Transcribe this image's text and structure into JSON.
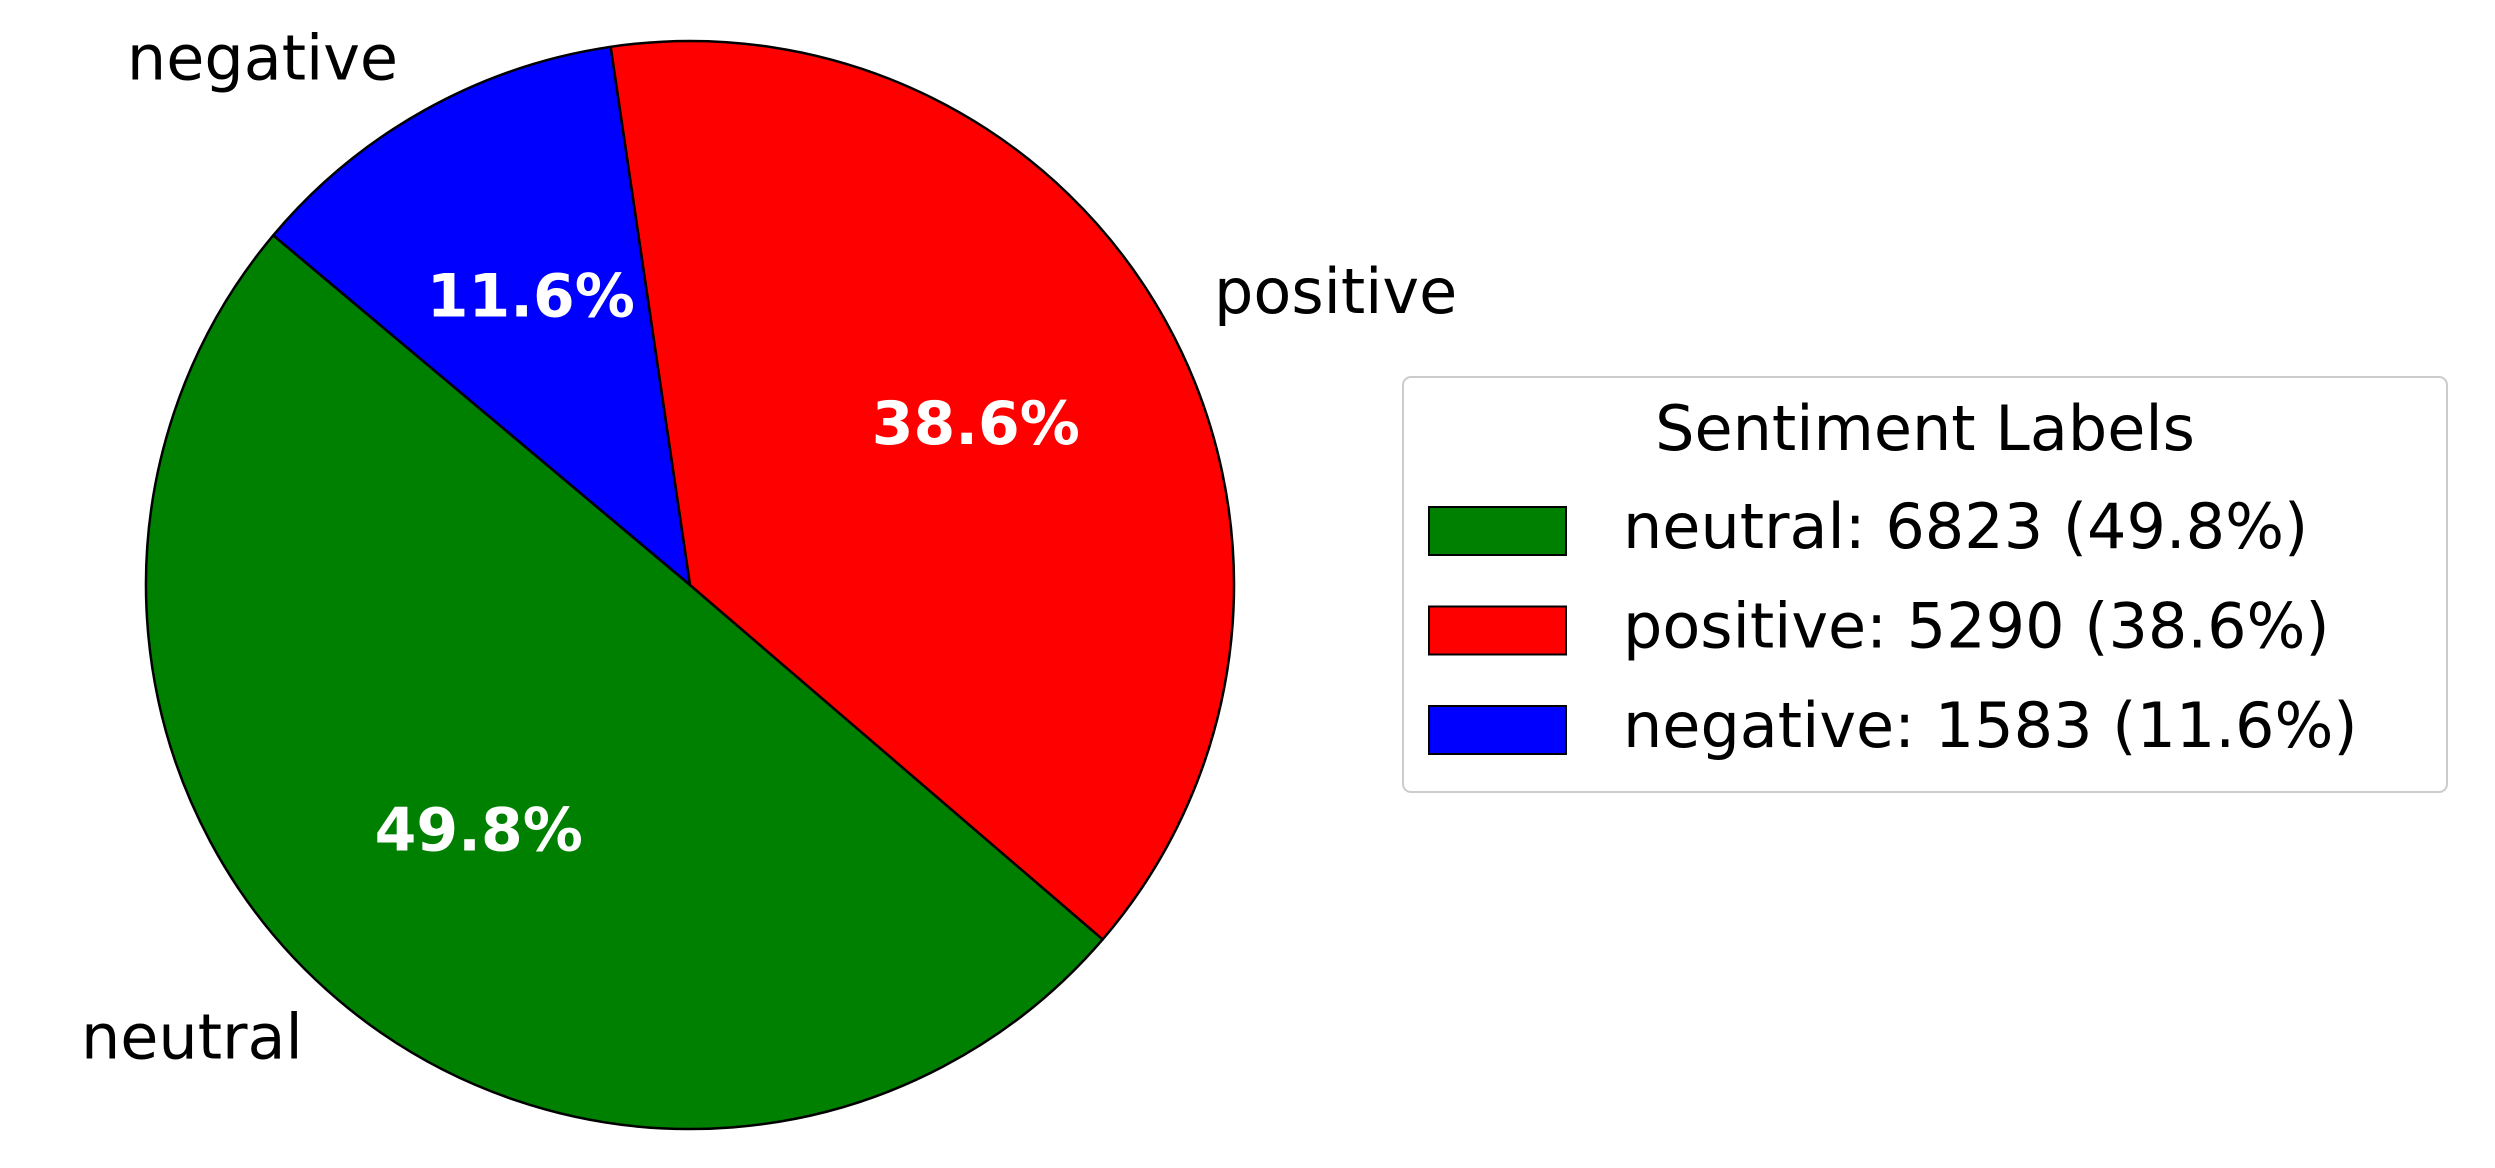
{
  "chart_data": {
    "type": "pie",
    "categories": [
      "neutral",
      "positive",
      "negative"
    ],
    "values": [
      6823,
      5290,
      1583
    ],
    "value_labels": [
      "49.8%",
      "38.6%",
      "11.6%"
    ],
    "colors": [
      "#008000",
      "#ff0000",
      "#0000ff"
    ],
    "startangle": 140,
    "counterclock": true,
    "legend": {
      "title": "Sentiment Labels",
      "labels": [
        "neutral: 6823 (49.8%)",
        "positive: 5290 (38.6%)",
        "negative: 1583 (11.6%)"
      ],
      "position": "right"
    }
  }
}
